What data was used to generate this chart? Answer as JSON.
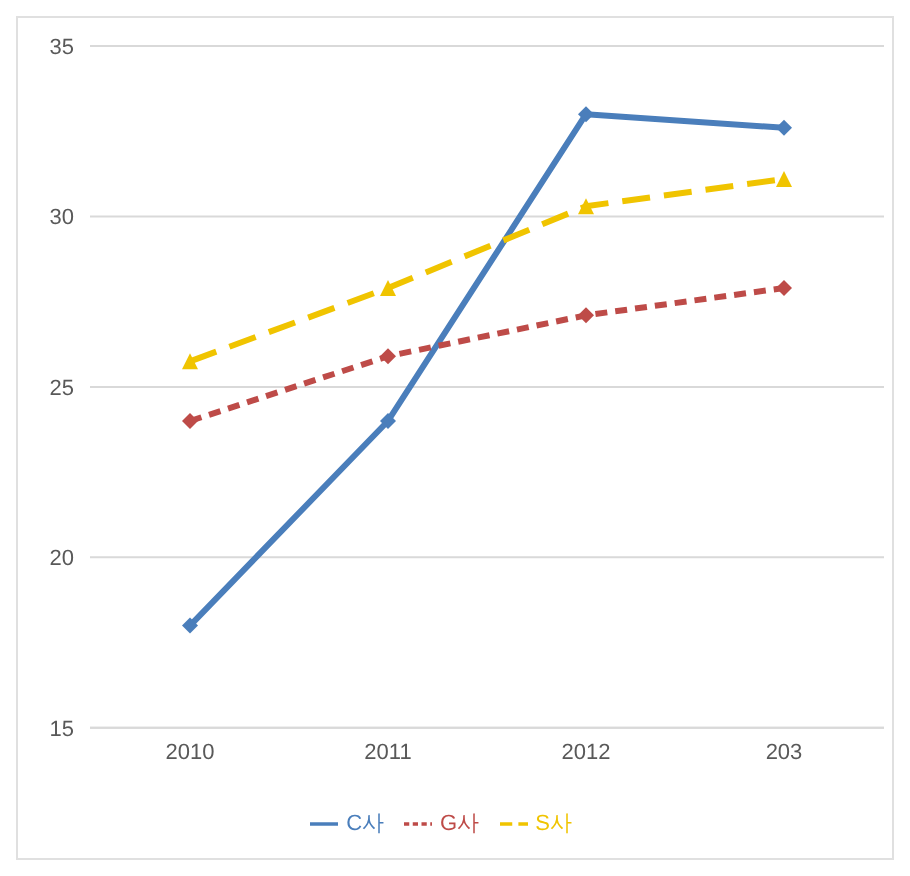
{
  "chart_data": {
    "type": "line",
    "categories": [
      "2010",
      "2011",
      "2012",
      "203"
    ],
    "series": [
      {
        "name": "C사",
        "color": "#4a7ebb",
        "values": [
          18,
          24,
          33,
          32.6
        ],
        "line_style": "solid",
        "marker": "diamond"
      },
      {
        "name": "G사",
        "color": "#be4b48",
        "values": [
          24,
          25.9,
          27.1,
          27.9
        ],
        "line_style": "dotted",
        "marker": "diamond"
      },
      {
        "name": "S사",
        "color": "#f0c400",
        "values": [
          25.75,
          27.9,
          30.3,
          31.1
        ],
        "line_style": "dashed",
        "marker": "triangle"
      }
    ],
    "ylim": [
      15,
      35
    ],
    "yticks": [
      15,
      20,
      25,
      30,
      35
    ],
    "grid": "y",
    "legend": "bottom"
  }
}
